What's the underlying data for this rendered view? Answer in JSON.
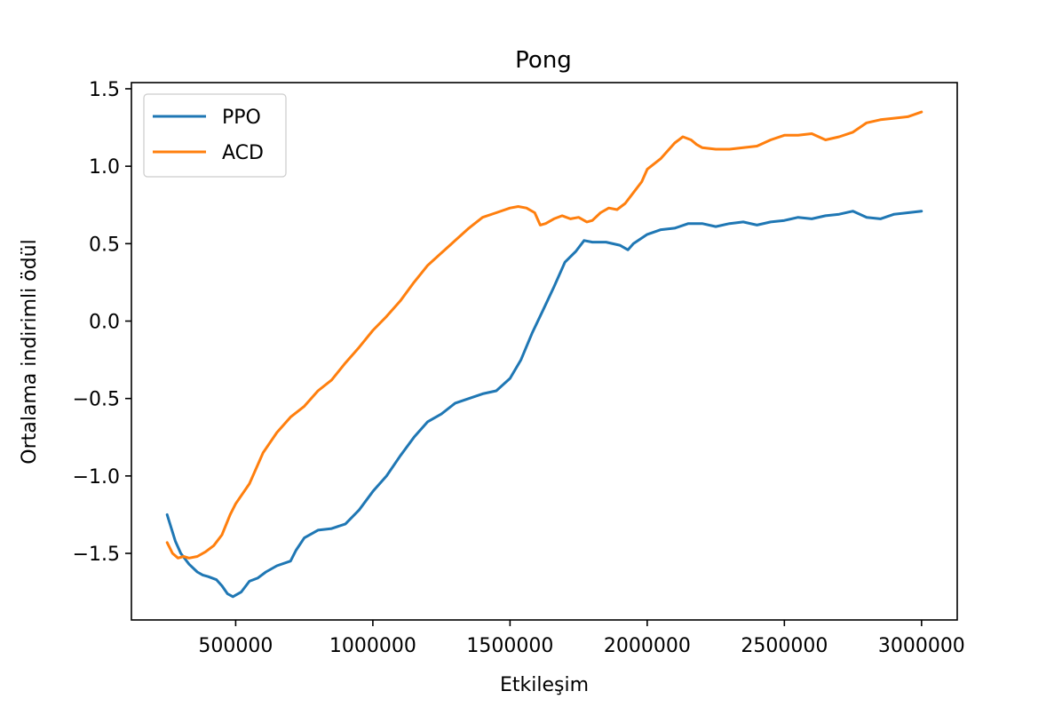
{
  "chart_data": {
    "type": "line",
    "title": "Pong",
    "xlabel": "Etkileşim",
    "ylabel": "Ortalama indirimli ödül",
    "xlim": [
      120000,
      3130000
    ],
    "ylim": [
      -1.93,
      1.54
    ],
    "xticks": [
      500000,
      1000000,
      1500000,
      2000000,
      2500000,
      3000000
    ],
    "xtick_labels": [
      "500000",
      "1000000",
      "1500000",
      "2000000",
      "2500000",
      "3000000"
    ],
    "yticks": [
      1.5,
      1.0,
      0.5,
      0.0,
      -0.5,
      -1.0,
      -1.5
    ],
    "ytick_labels": [
      "1.5",
      "1.0",
      "0.5",
      "0.0",
      "−0.5",
      "−1.0",
      "−1.5"
    ],
    "grid": false,
    "legend_position": "top-left",
    "series": [
      {
        "name": "PPO",
        "color": "#1f77b4",
        "x": [
          250000,
          280000,
          300000,
          330000,
          360000,
          380000,
          400000,
          430000,
          450000,
          470000,
          490000,
          500000,
          520000,
          550000,
          580000,
          610000,
          650000,
          700000,
          720000,
          750000,
          800000,
          850000,
          900000,
          950000,
          1000000,
          1050000,
          1100000,
          1150000,
          1200000,
          1250000,
          1300000,
          1350000,
          1400000,
          1450000,
          1500000,
          1540000,
          1580000,
          1620000,
          1660000,
          1700000,
          1740000,
          1770000,
          1800000,
          1850000,
          1900000,
          1930000,
          1950000,
          2000000,
          2050000,
          2100000,
          2150000,
          2200000,
          2250000,
          2300000,
          2350000,
          2400000,
          2450000,
          2500000,
          2550000,
          2600000,
          2650000,
          2700000,
          2750000,
          2800000,
          2850000,
          2900000,
          2950000,
          3000000
        ],
        "y": [
          -1.25,
          -1.42,
          -1.5,
          -1.57,
          -1.62,
          -1.64,
          -1.65,
          -1.67,
          -1.71,
          -1.76,
          -1.78,
          -1.77,
          -1.75,
          -1.68,
          -1.66,
          -1.62,
          -1.58,
          -1.55,
          -1.48,
          -1.4,
          -1.35,
          -1.34,
          -1.31,
          -1.22,
          -1.1,
          -1.0,
          -0.87,
          -0.75,
          -0.65,
          -0.6,
          -0.53,
          -0.5,
          -0.47,
          -0.45,
          -0.37,
          -0.25,
          -0.08,
          0.07,
          0.22,
          0.38,
          0.45,
          0.52,
          0.51,
          0.51,
          0.49,
          0.46,
          0.5,
          0.56,
          0.59,
          0.6,
          0.63,
          0.63,
          0.61,
          0.63,
          0.64,
          0.62,
          0.64,
          0.65,
          0.67,
          0.66,
          0.68,
          0.69,
          0.71,
          0.67,
          0.66,
          0.69,
          0.7,
          0.71
        ]
      },
      {
        "name": "ACD",
        "color": "#ff7f0e",
        "x": [
          250000,
          270000,
          290000,
          310000,
          330000,
          360000,
          390000,
          420000,
          450000,
          480000,
          500000,
          550000,
          600000,
          650000,
          700000,
          750000,
          800000,
          850000,
          900000,
          950000,
          1000000,
          1050000,
          1100000,
          1150000,
          1200000,
          1250000,
          1300000,
          1350000,
          1400000,
          1450000,
          1500000,
          1530000,
          1560000,
          1590000,
          1610000,
          1630000,
          1660000,
          1690000,
          1720000,
          1750000,
          1780000,
          1800000,
          1830000,
          1860000,
          1890000,
          1920000,
          1950000,
          1980000,
          2000000,
          2050000,
          2100000,
          2130000,
          2160000,
          2180000,
          2200000,
          2250000,
          2300000,
          2350000,
          2400000,
          2450000,
          2500000,
          2550000,
          2600000,
          2650000,
          2700000,
          2750000,
          2800000,
          2850000,
          2900000,
          2950000,
          3000000
        ],
        "y": [
          -1.43,
          -1.5,
          -1.53,
          -1.52,
          -1.53,
          -1.52,
          -1.49,
          -1.45,
          -1.38,
          -1.25,
          -1.18,
          -1.05,
          -0.85,
          -0.72,
          -0.62,
          -0.55,
          -0.45,
          -0.38,
          -0.27,
          -0.17,
          -0.06,
          0.03,
          0.13,
          0.25,
          0.36,
          0.44,
          0.52,
          0.6,
          0.67,
          0.7,
          0.73,
          0.74,
          0.73,
          0.7,
          0.62,
          0.63,
          0.66,
          0.68,
          0.66,
          0.67,
          0.64,
          0.65,
          0.7,
          0.73,
          0.72,
          0.76,
          0.83,
          0.9,
          0.98,
          1.05,
          1.15,
          1.19,
          1.17,
          1.14,
          1.12,
          1.11,
          1.11,
          1.12,
          1.13,
          1.17,
          1.2,
          1.2,
          1.21,
          1.17,
          1.19,
          1.22,
          1.28,
          1.3,
          1.31,
          1.32,
          1.35
        ]
      }
    ]
  }
}
